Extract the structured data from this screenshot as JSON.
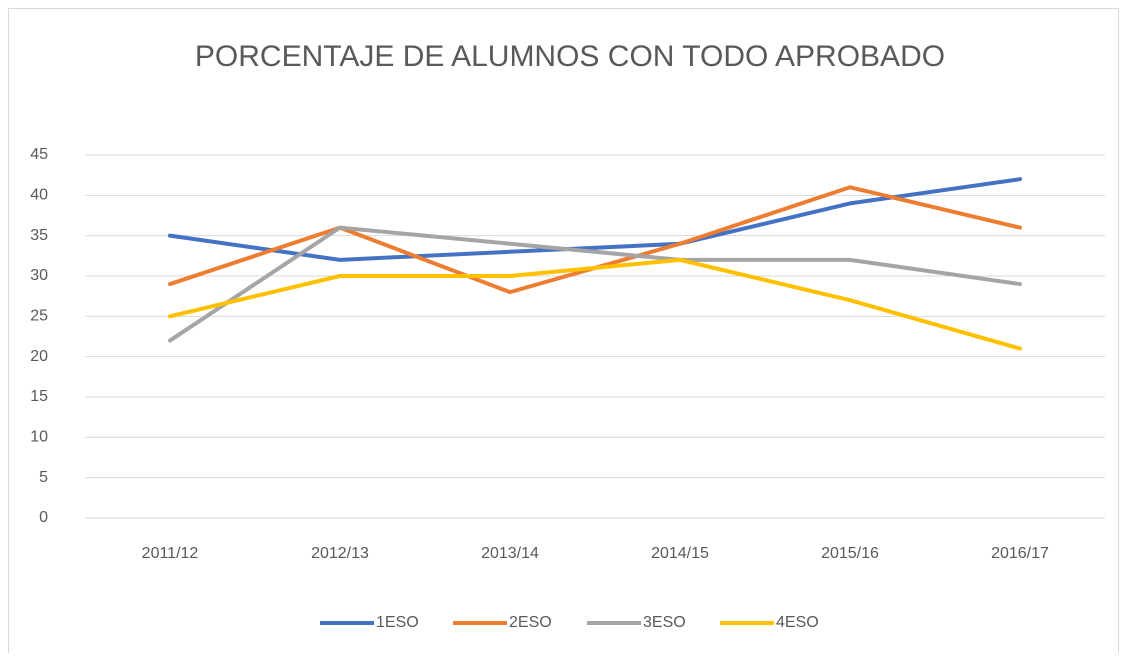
{
  "chart_data": {
    "type": "line",
    "title": "PORCENTAJE DE ALUMNOS CON TODO APROBADO",
    "categories": [
      "2011/12",
      "2012/13",
      "2013/14",
      "2014/15",
      "2015/16",
      "2016/17"
    ],
    "series": [
      {
        "name": "1ESO",
        "color": "#4472c4",
        "values": [
          35,
          32,
          33,
          34,
          39,
          42
        ]
      },
      {
        "name": "2ESO",
        "color": "#ed7d31",
        "values": [
          29,
          36,
          28,
          34,
          41,
          36
        ]
      },
      {
        "name": "3ESO",
        "color": "#a5a5a5",
        "values": [
          22,
          36,
          34,
          32,
          32,
          29
        ]
      },
      {
        "name": "4ESO",
        "color": "#ffc000",
        "values": [
          25,
          30,
          30,
          32,
          27,
          21
        ]
      }
    ],
    "ylim": [
      0,
      45
    ],
    "yticks": [
      0,
      5,
      10,
      15,
      20,
      25,
      30,
      35,
      40,
      45
    ],
    "grid": true,
    "legend": "bottom"
  }
}
